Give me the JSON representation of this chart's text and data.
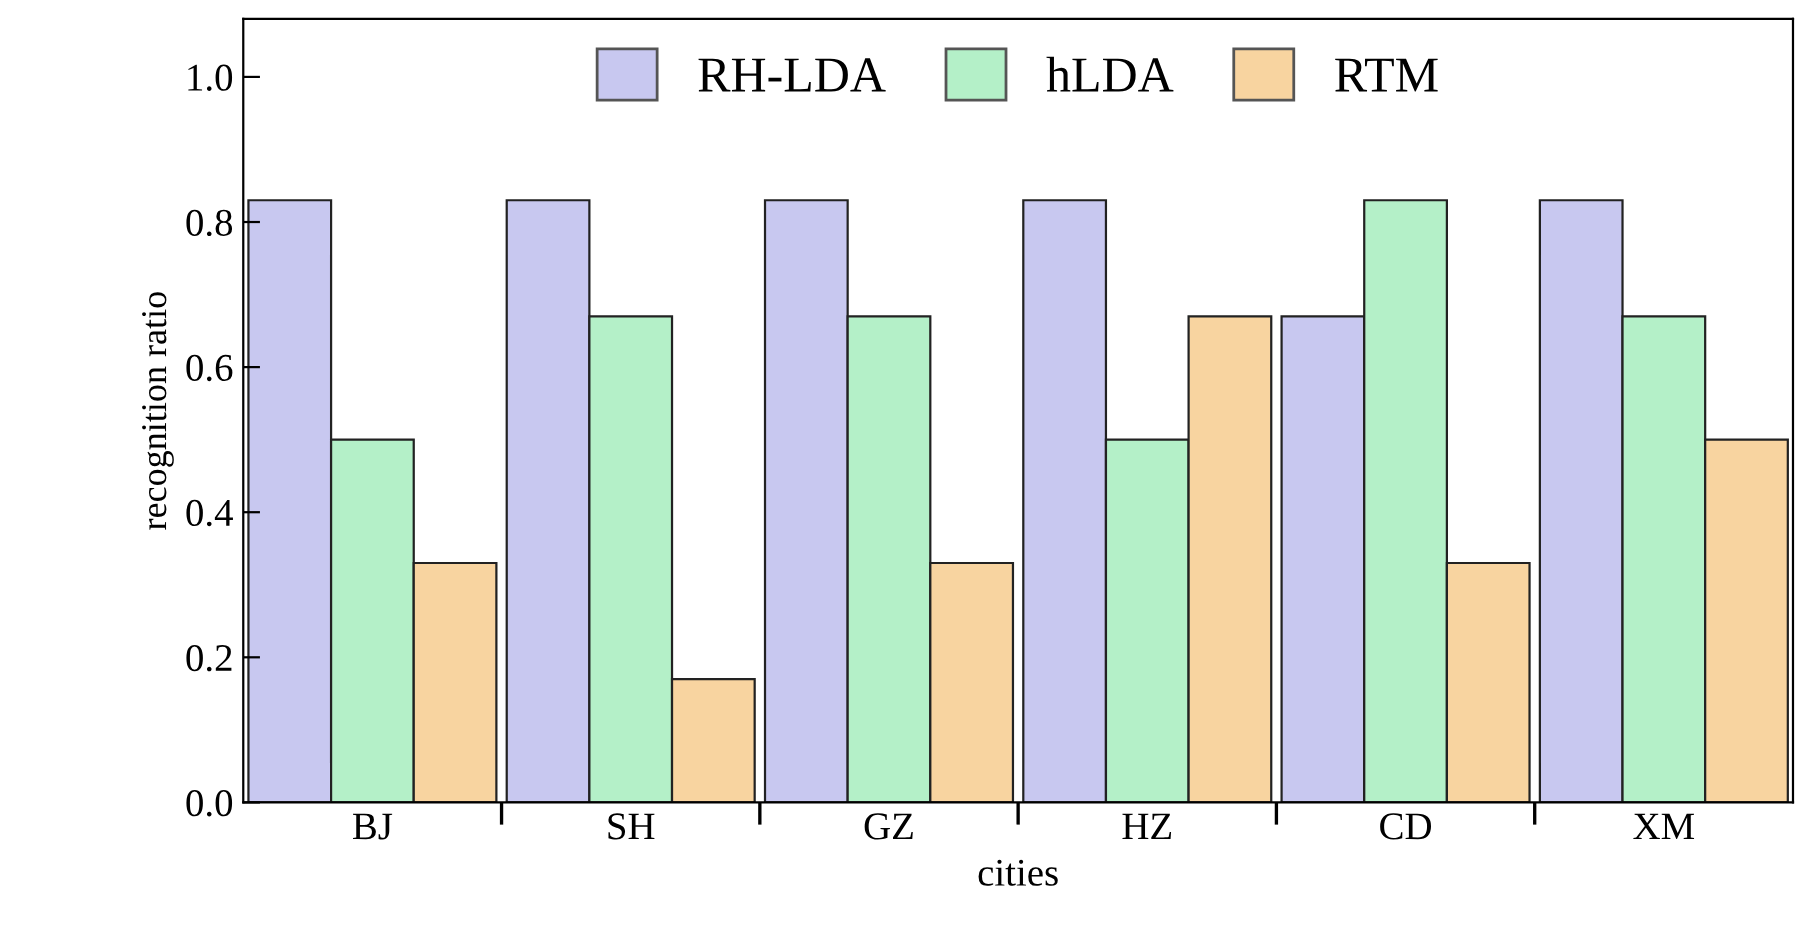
{
  "chart_data": {
    "type": "bar",
    "xlabel": "cities",
    "ylabel": "recognition ratio",
    "categories": [
      "BJ",
      "SH",
      "GZ",
      "HZ",
      "CD",
      "XM"
    ],
    "series": [
      {
        "name": "RH-LDA",
        "color": "#c8c8f0",
        "values": [
          0.83,
          0.83,
          0.83,
          0.83,
          0.67,
          0.83
        ]
      },
      {
        "name": "hLDA",
        "color": "#b4f0c8",
        "values": [
          0.5,
          0.67,
          0.67,
          0.5,
          0.83,
          0.67
        ]
      },
      {
        "name": "RTM",
        "color": "#f8d4a0",
        "values": [
          0.33,
          0.17,
          0.33,
          0.67,
          0.33,
          0.5
        ]
      }
    ],
    "ylim": [
      0,
      1.08
    ],
    "yticks": [
      {
        "value": 0,
        "label": "0.0"
      },
      {
        "value": 0.2,
        "label": "0.2"
      },
      {
        "value": 0.4,
        "label": "0.4"
      },
      {
        "value": 0.6,
        "label": "0.6"
      },
      {
        "value": 0.8,
        "label": "0.8"
      },
      {
        "value": 1.0,
        "label": "1.0"
      }
    ],
    "grid": false,
    "legend": "top"
  }
}
